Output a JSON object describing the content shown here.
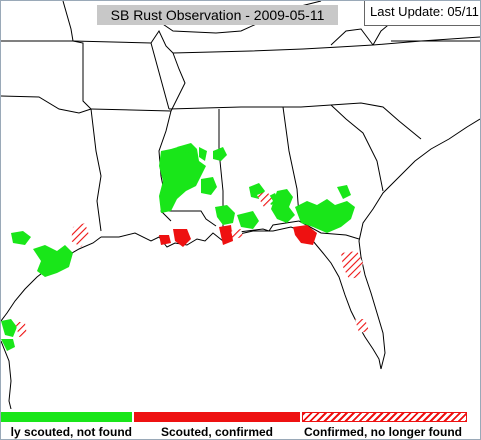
{
  "map": {
    "title": "SB Rust Observation - 2009-05-11",
    "last_update": "Last Update: 05/11",
    "colors": {
      "scouted_not_found": "#19e619",
      "scouted_confirmed": "#ee1111",
      "confirmed_no_longer_found": "#ee1111",
      "boundary": "#000000",
      "background": "#ffffff"
    }
  },
  "legend": {
    "items": [
      {
        "label": "ly scouted, not found",
        "swatch": "solid-green"
      },
      {
        "label": "Scouted, confirmed",
        "swatch": "solid-red"
      },
      {
        "label": "Confirmed, no longer found",
        "swatch": "red-hatch"
      }
    ]
  }
}
